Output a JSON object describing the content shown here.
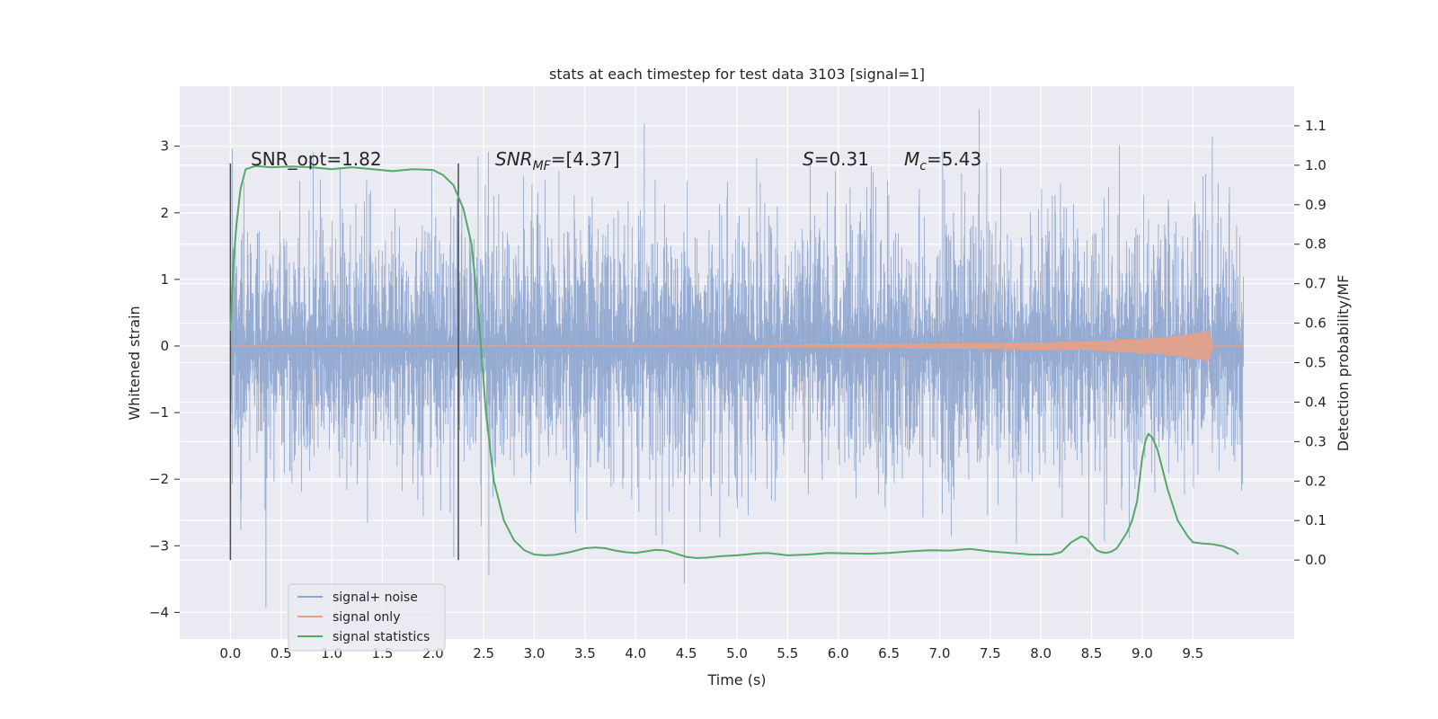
{
  "chart_data": {
    "type": "line",
    "title": "stats at each timestep for test data 3103 [signal=1]",
    "xlabel": "Time (s)",
    "ylabel": "Whitened strain",
    "y2label": "Detection probability/MF",
    "xlim": [
      -0.5,
      10.5
    ],
    "ylim": [
      -4.4,
      3.9
    ],
    "y2lim": [
      -0.2,
      1.2
    ],
    "x_ticks": [
      "0.0",
      "0.5",
      "1.0",
      "1.5",
      "2.0",
      "2.5",
      "3.0",
      "3.5",
      "4.0",
      "4.5",
      "5.0",
      "5.5",
      "6.0",
      "6.5",
      "7.0",
      "7.5",
      "8.0",
      "8.5",
      "9.0",
      "9.5"
    ],
    "y_ticks": [
      "3",
      "2",
      "1",
      "0",
      "−1",
      "−2",
      "−3",
      "−4"
    ],
    "y2_ticks": [
      "1.1",
      "1.0",
      "0.9",
      "0.8",
      "0.7",
      "0.6",
      "0.5",
      "0.4",
      "0.3",
      "0.2",
      "0.1",
      "0.0"
    ],
    "grid": true,
    "legend_position": "lower-left",
    "annotations": {
      "snr_opt": "SNR_opt=1.82",
      "snr_mf_main": "SNR",
      "snr_mf_sub": "MF",
      "snr_mf_rest": "=[4.37]",
      "s_main": "S",
      "s_rest": "=0.31",
      "mc_main": "M",
      "mc_sub": "c",
      "mc_rest": "=5.43"
    },
    "vertical_markers": [
      0.0,
      2.25
    ],
    "series": [
      {
        "name": "signal+ noise",
        "color": "#8fa6cf",
        "time_range": [
          0.0,
          10.0
        ],
        "typical_range": [
          -1.6,
          1.6
        ],
        "extreme_range": [
          -4.05,
          3.55
        ]
      },
      {
        "name": "signal only",
        "color": "#e2a18a",
        "time_range": [
          0.0,
          10.0
        ],
        "envelope": [
          [
            0.0,
            0.0
          ],
          [
            5.0,
            0.01
          ],
          [
            7.0,
            0.03
          ],
          [
            8.5,
            0.06
          ],
          [
            9.2,
            0.12
          ],
          [
            9.5,
            0.18
          ],
          [
            9.65,
            0.22
          ],
          [
            9.7,
            0.0
          ]
        ]
      },
      {
        "name": "signal statistics",
        "color": "#55a868",
        "axis": "right",
        "x": [
          0.0,
          0.03,
          0.06,
          0.1,
          0.15,
          0.25,
          0.4,
          0.6,
          0.8,
          1.0,
          1.2,
          1.4,
          1.6,
          1.8,
          2.0,
          2.1,
          2.2,
          2.3,
          2.38,
          2.45,
          2.52,
          2.6,
          2.7,
          2.8,
          2.9,
          3.0,
          3.1,
          3.2,
          3.35,
          3.5,
          3.6,
          3.7,
          3.8,
          3.9,
          4.0,
          4.1,
          4.2,
          4.3,
          4.4,
          4.5,
          4.6,
          4.7,
          4.85,
          5.0,
          5.2,
          5.3,
          5.5,
          5.7,
          5.9,
          6.1,
          6.3,
          6.5,
          6.7,
          6.9,
          7.1,
          7.3,
          7.5,
          7.7,
          7.9,
          8.1,
          8.2,
          8.3,
          8.4,
          8.45,
          8.5,
          8.55,
          8.6,
          8.65,
          8.7,
          8.75,
          8.8,
          8.85,
          8.9,
          8.95,
          9.0,
          9.03,
          9.06,
          9.1,
          9.15,
          9.2,
          9.25,
          9.3,
          9.35,
          9.4,
          9.45,
          9.5,
          9.6,
          9.7,
          9.8,
          9.9,
          9.95
        ],
        "values": [
          0.58,
          0.75,
          0.85,
          0.94,
          0.99,
          0.998,
          0.995,
          0.997,
          0.995,
          0.99,
          0.995,
          0.99,
          0.985,
          0.99,
          0.988,
          0.975,
          0.95,
          0.89,
          0.8,
          0.62,
          0.38,
          0.2,
          0.1,
          0.05,
          0.025,
          0.014,
          0.012,
          0.013,
          0.02,
          0.03,
          0.032,
          0.03,
          0.024,
          0.02,
          0.018,
          0.022,
          0.026,
          0.024,
          0.016,
          0.008,
          0.005,
          0.006,
          0.01,
          0.012,
          0.017,
          0.018,
          0.012,
          0.014,
          0.018,
          0.017,
          0.016,
          0.018,
          0.022,
          0.025,
          0.024,
          0.028,
          0.022,
          0.018,
          0.014,
          0.014,
          0.02,
          0.045,
          0.06,
          0.055,
          0.04,
          0.025,
          0.02,
          0.018,
          0.022,
          0.03,
          0.05,
          0.07,
          0.1,
          0.15,
          0.26,
          0.3,
          0.32,
          0.31,
          0.28,
          0.23,
          0.18,
          0.14,
          0.1,
          0.08,
          0.06,
          0.045,
          0.042,
          0.04,
          0.035,
          0.025,
          0.015
        ]
      }
    ]
  }
}
